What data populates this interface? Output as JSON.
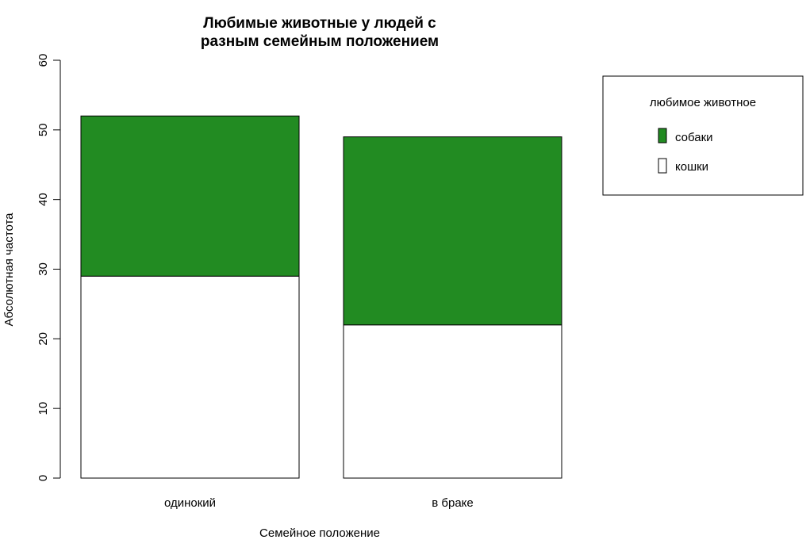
{
  "chart_data": {
    "type": "bar",
    "stacked": true,
    "title_lines": [
      "Любимые животные у людей с",
      "разным семейным положением"
    ],
    "xlabel": "Семейное положение",
    "ylabel": "Абсолютная частота",
    "categories": [
      "одинокий",
      "в браке"
    ],
    "series": [
      {
        "name": "кошки",
        "values": [
          29,
          22
        ],
        "color": "#ffffff"
      },
      {
        "name": "собаки",
        "values": [
          23,
          27
        ],
        "color": "#228B22"
      }
    ],
    "ylim": [
      0,
      60
    ],
    "yticks": [
      "0",
      "10",
      "20",
      "30",
      "40",
      "50",
      "60"
    ],
    "grid": false,
    "legend": {
      "title": "любимое животное",
      "placement": "top-right",
      "entries": [
        "собаки",
        "кошки"
      ]
    }
  }
}
